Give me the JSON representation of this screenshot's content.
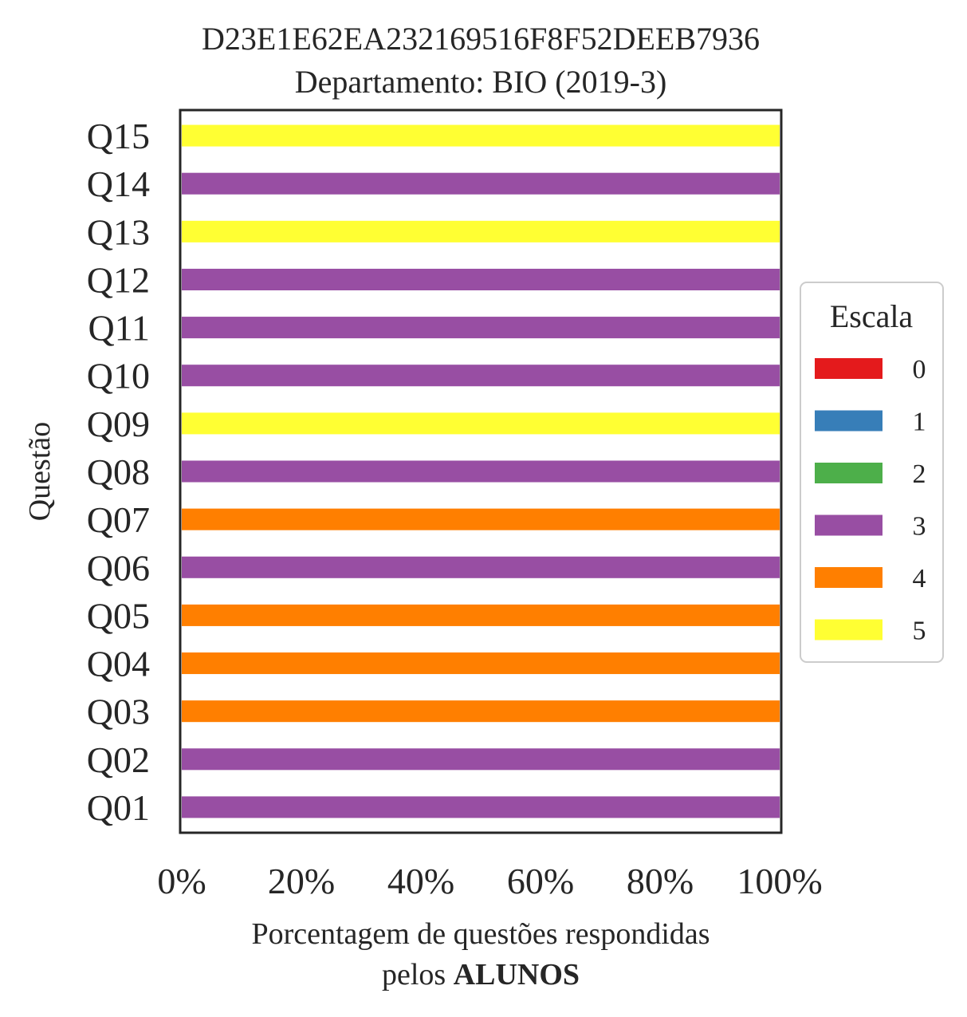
{
  "chart_data": {
    "type": "bar",
    "orientation": "horizontal",
    "stacked": true,
    "title": "D23E1E62EA232169516F8F52DEEB7936",
    "subtitle": "Departamento: BIO (2019-3)",
    "xlabel": "Porcentagem de questões respondidas",
    "xlabel_line2_prefix": "pelos ",
    "xlabel_line2_bold": "ALUNOS",
    "ylabel": "Questão",
    "xlim": [
      0,
      100
    ],
    "xticks": [
      "0%",
      "20%",
      "40%",
      "60%",
      "80%",
      "100%"
    ],
    "xtick_values": [
      0,
      20,
      40,
      60,
      80,
      100
    ],
    "categories": [
      "Q01",
      "Q02",
      "Q03",
      "Q04",
      "Q05",
      "Q06",
      "Q07",
      "Q08",
      "Q09",
      "Q10",
      "Q11",
      "Q12",
      "Q13",
      "Q14",
      "Q15"
    ],
    "legend_title": "Escala",
    "legend_position": "center-right",
    "grid": false,
    "series": [
      {
        "name": "0",
        "color": "#e41a1c",
        "values": [
          0,
          0,
          0,
          0,
          0,
          0,
          0,
          0,
          0,
          0,
          0,
          0,
          0,
          0,
          0
        ]
      },
      {
        "name": "1",
        "color": "#377eb8",
        "values": [
          0,
          0,
          0,
          0,
          0,
          0,
          0,
          0,
          0,
          0,
          0,
          0,
          0,
          0,
          0
        ]
      },
      {
        "name": "2",
        "color": "#4daf4a",
        "values": [
          0,
          0,
          0,
          0,
          0,
          0,
          0,
          0,
          0,
          0,
          0,
          0,
          0,
          0,
          0
        ]
      },
      {
        "name": "3",
        "color": "#984ea3",
        "values": [
          100,
          100,
          0,
          0,
          0,
          100,
          0,
          100,
          0,
          100,
          100,
          100,
          0,
          100,
          0
        ]
      },
      {
        "name": "4",
        "color": "#ff7f00",
        "values": [
          0,
          0,
          100,
          100,
          100,
          0,
          100,
          0,
          0,
          0,
          0,
          0,
          0,
          0,
          0
        ]
      },
      {
        "name": "5",
        "color": "#ffff33",
        "values": [
          0,
          0,
          0,
          0,
          0,
          0,
          0,
          0,
          100,
          0,
          0,
          0,
          100,
          0,
          100
        ]
      }
    ]
  }
}
